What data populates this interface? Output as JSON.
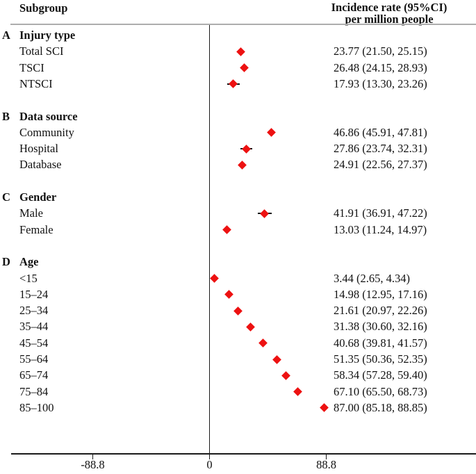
{
  "figure": {
    "header": {
      "subgroup_label": "Subgroup",
      "value_header_line1": "Incidence rate (95%CI)",
      "value_header_line2": "per million people"
    },
    "colors": {
      "marker": "#ed1111",
      "whisker": "#111111",
      "axis": "#1a1a1a",
      "header_rule": "#adadad",
      "text": "#111111"
    }
  },
  "chart_data": {
    "type": "scatter",
    "subtype": "forest-plot",
    "title": "",
    "xlabel": "",
    "ylabel": "",
    "xlim": [
      -160,
      203
    ],
    "x_ticks": [
      -88.8,
      0,
      88.8
    ],
    "x_tick_labels": [
      "-88.8",
      "0",
      "88.8"
    ],
    "zero_reference_line": true,
    "grid": false,
    "marker_shape": "diamond",
    "groups": [
      {
        "letter": "A",
        "label": "Injury type",
        "rows": [
          {
            "label": "Total SCI",
            "estimate": 23.77,
            "ci_low": 21.5,
            "ci_high": 25.15,
            "text": "23.77 (21.50, 25.15)"
          },
          {
            "label": "TSCI",
            "estimate": 26.48,
            "ci_low": 24.15,
            "ci_high": 28.93,
            "text": "26.48 (24.15, 28.93)"
          },
          {
            "label": "NTSCI",
            "estimate": 17.93,
            "ci_low": 13.3,
            "ci_high": 23.26,
            "text": "17.93 (13.30, 23.26)"
          }
        ]
      },
      {
        "letter": "B",
        "label": "Data source",
        "rows": [
          {
            "label": "Community",
            "estimate": 46.86,
            "ci_low": 45.91,
            "ci_high": 47.81,
            "text": "46.86 (45.91, 47.81)"
          },
          {
            "label": "Hospital",
            "estimate": 27.86,
            "ci_low": 23.74,
            "ci_high": 32.31,
            "text": "27.86 (23.74, 32.31)"
          },
          {
            "label": "Database",
            "estimate": 24.91,
            "ci_low": 22.56,
            "ci_high": 27.37,
            "text": "24.91 (22.56, 27.37)"
          }
        ]
      },
      {
        "letter": "C",
        "label": "Gender",
        "rows": [
          {
            "label": "Male",
            "estimate": 41.91,
            "ci_low": 36.91,
            "ci_high": 47.22,
            "text": "41.91 (36.91, 47.22)"
          },
          {
            "label": "Female",
            "estimate": 13.03,
            "ci_low": 11.24,
            "ci_high": 14.97,
            "text": "13.03 (11.24, 14.97)"
          }
        ]
      },
      {
        "letter": "D",
        "label": "Age",
        "rows": [
          {
            "label": "<15",
            "estimate": 3.44,
            "ci_low": 2.65,
            "ci_high": 4.34,
            "text": "3.44 (2.65, 4.34)"
          },
          {
            "label": "15–24",
            "estimate": 14.98,
            "ci_low": 12.95,
            "ci_high": 17.16,
            "text": "14.98 (12.95, 17.16)"
          },
          {
            "label": "25–34",
            "estimate": 21.61,
            "ci_low": 20.97,
            "ci_high": 22.26,
            "text": "21.61 (20.97, 22.26)"
          },
          {
            "label": "35–44",
            "estimate": 31.38,
            "ci_low": 30.6,
            "ci_high": 32.16,
            "text": "31.38 (30.60, 32.16)"
          },
          {
            "label": "45–54",
            "estimate": 40.68,
            "ci_low": 39.81,
            "ci_high": 41.57,
            "text": "40.68 (39.81, 41.57)"
          },
          {
            "label": "55–64",
            "estimate": 51.35,
            "ci_low": 50.36,
            "ci_high": 52.35,
            "text": "51.35 (50.36, 52.35)"
          },
          {
            "label": "65–74",
            "estimate": 58.34,
            "ci_low": 57.28,
            "ci_high": 59.4,
            "text": "58.34 (57.28, 59.40)"
          },
          {
            "label": "75–84",
            "estimate": 67.1,
            "ci_low": 65.5,
            "ci_high": 68.73,
            "text": "67.10 (65.50, 68.73)"
          },
          {
            "label": "85–100",
            "estimate": 87.0,
            "ci_low": 85.18,
            "ci_high": 88.85,
            "text": "87.00 (85.18, 88.85)"
          }
        ]
      }
    ]
  }
}
